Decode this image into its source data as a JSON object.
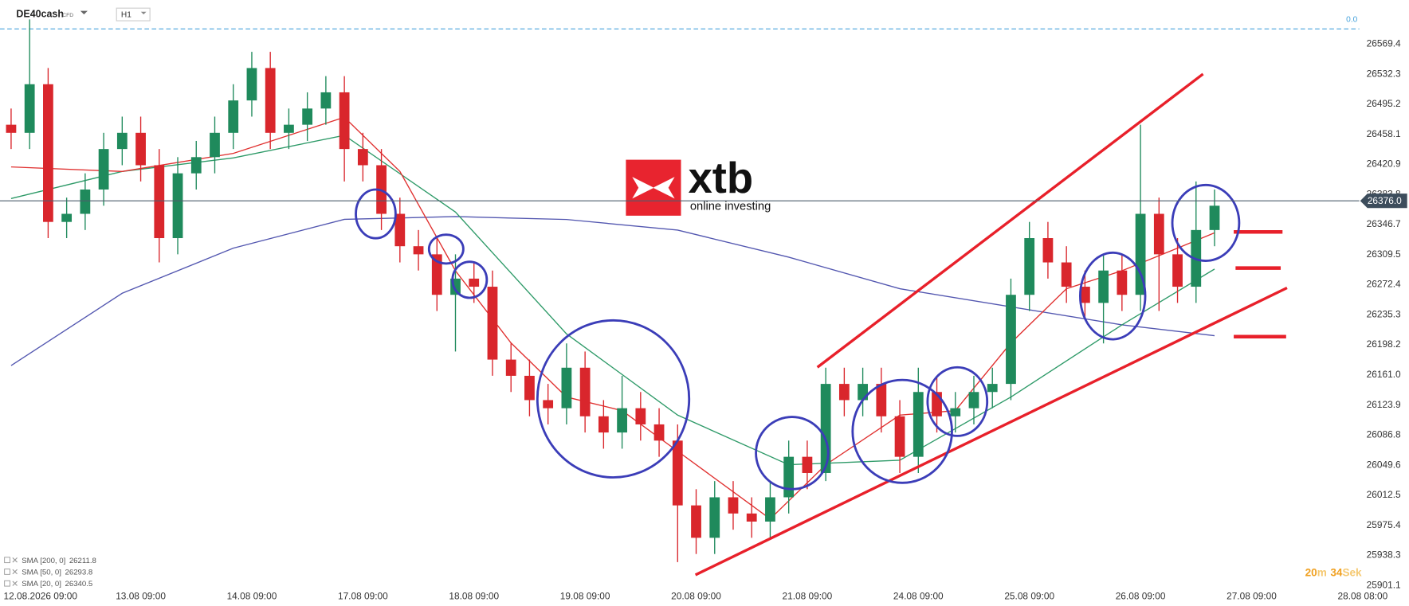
{
  "chart_data": {
    "type": "candlestick",
    "symbol": "DE40cash",
    "symbol_tag": "CFD",
    "timeframe": "H1",
    "watermark": {
      "brand": "xtb",
      "tagline": "online investing"
    },
    "zero_label": "0.0",
    "countdown": {
      "minutes": "20",
      "minutes_unit": "m",
      "seconds": "34",
      "seconds_unit": "Sek"
    },
    "up_color": "#1f8a5c",
    "down_color": "#d9262c",
    "x": [
      -1,
      0,
      1,
      2,
      3,
      4,
      5,
      6,
      7,
      8,
      9,
      10,
      11,
      12,
      13,
      14,
      15,
      16,
      17,
      18,
      19,
      20,
      21,
      22,
      23,
      24,
      25,
      26,
      27,
      28,
      29,
      30,
      31,
      32,
      33,
      34,
      35,
      36,
      37,
      38,
      39,
      40,
      41,
      42,
      43,
      44,
      45,
      46,
      47,
      48,
      49,
      50,
      51,
      52,
      53,
      54,
      55,
      56,
      57,
      58,
      59,
      60,
      61,
      62,
      63,
      64
    ],
    "open": [
      26470,
      26460,
      26520,
      26350,
      26360,
      26390,
      26440,
      26460,
      26420,
      26330,
      26410,
      26430,
      26460,
      26500,
      26540,
      26460,
      26470,
      26490,
      26510,
      26440,
      26420,
      26360,
      26320,
      26310,
      26260,
      26280,
      26270,
      26180,
      26160,
      26130,
      26120,
      26170,
      26110,
      26090,
      26120,
      26100,
      26080,
      26000,
      25960,
      26010,
      25990,
      25980,
      26010,
      26060,
      26040,
      26150,
      26130,
      26150,
      26110,
      26060,
      26140,
      26110,
      26120,
      26140,
      26150,
      26260,
      26330,
      26300,
      26270,
      26250,
      26290,
      26260,
      26360,
      26310,
      26270,
      26340
    ],
    "high": [
      26490,
      26600,
      26540,
      26380,
      26410,
      26460,
      26480,
      26480,
      26440,
      26430,
      26450,
      26480,
      26520,
      26560,
      26560,
      26490,
      26510,
      26530,
      26530,
      26460,
      26440,
      26380,
      26340,
      26330,
      26310,
      26300,
      26290,
      26200,
      26180,
      26150,
      26200,
      26190,
      26130,
      26160,
      26140,
      26120,
      26100,
      26020,
      26030,
      26030,
      26010,
      26030,
      26080,
      26080,
      26170,
      26170,
      26170,
      26170,
      26130,
      26170,
      26160,
      26140,
      26160,
      26170,
      26280,
      26350,
      26350,
      26320,
      26290,
      26310,
      26310,
      26470,
      26380,
      26330,
      26400,
      26390
    ],
    "low": [
      26440,
      26440,
      26330,
      26330,
      26340,
      26370,
      26420,
      26400,
      26300,
      26310,
      26390,
      26410,
      26440,
      26480,
      26440,
      26440,
      26450,
      26470,
      26400,
      26400,
      26340,
      26300,
      26290,
      26240,
      26190,
      26250,
      26160,
      26140,
      26110,
      26100,
      26100,
      26090,
      26070,
      26070,
      26080,
      26060,
      25930,
      25940,
      25940,
      25970,
      25960,
      25960,
      25990,
      26020,
      26030,
      26110,
      26110,
      26090,
      26040,
      26040,
      26090,
      26090,
      26100,
      26120,
      26130,
      26240,
      26280,
      26250,
      26230,
      26200,
      26240,
      26240,
      26240,
      26250,
      26250,
      26320
    ],
    "close": [
      26460,
      26520,
      26350,
      26360,
      26390,
      26440,
      26460,
      26420,
      26330,
      26410,
      26430,
      26460,
      26500,
      26540,
      26460,
      26470,
      26490,
      26510,
      26440,
      26420,
      26360,
      26320,
      26310,
      26260,
      26280,
      26270,
      26180,
      26160,
      26130,
      26120,
      26170,
      26110,
      26090,
      26120,
      26100,
      26080,
      26000,
      25960,
      26010,
      25990,
      25980,
      26010,
      26060,
      26040,
      26150,
      26130,
      26150,
      26110,
      26060,
      26140,
      26110,
      26120,
      26140,
      26150,
      26260,
      26330,
      26300,
      26270,
      26250,
      26290,
      26260,
      26360,
      26310,
      26270,
      26340,
      26370
    ],
    "series": [
      {
        "name": "SMA [200, 0]",
        "last": 26211.8,
        "color": "#5357b0",
        "x": [
          -1,
          5,
          11,
          17,
          23,
          29,
          35,
          41,
          47,
          53,
          59,
          64
        ],
        "values": [
          26172.7,
          26261.9,
          26317.6,
          26353.2,
          26356.6,
          26353.0,
          26339.9,
          26306.5,
          26267.5,
          26245.2,
          26222.9,
          26209.5
        ]
      },
      {
        "name": "SMA [50, 0]",
        "last": 26293.8,
        "color": "#2e9a68",
        "x": [
          -1,
          5,
          11,
          17,
          23,
          29,
          35,
          41,
          47,
          53,
          59,
          64
        ],
        "values": [
          26378.9,
          26412.3,
          26429.0,
          26456.9,
          26362.2,
          26211.7,
          26111.5,
          26050.2,
          26055.8,
          26133.8,
          26222.9,
          26291.8
        ]
      },
      {
        "name": "SMA [20, 0]",
        "last": 26340.5,
        "color": "#e0302f",
        "x": [
          -1,
          5,
          11,
          17,
          20,
          23,
          26,
          29,
          32,
          35,
          38,
          40,
          43,
          47,
          50,
          53,
          56,
          59,
          62,
          64
        ],
        "values": [
          26417.9,
          26412.3,
          26434.6,
          26479.2,
          26412.3,
          26289.7,
          26200.6,
          26133.8,
          26117.0,
          26066.9,
          26016.8,
          25983.3,
          26050.2,
          26111.5,
          26117.0,
          26200.6,
          26267.5,
          26289.7,
          26317.6,
          26336.5
        ]
      }
    ],
    "current_price": {
      "value": 26376,
      "label": "26376.0"
    },
    "xlim": [
      -1.6,
      72.5
    ],
    "xticks": [
      {
        "value": 0,
        "label": "12.08.2026 09:00"
      },
      {
        "value": 6,
        "label": "13.08 09:00"
      },
      {
        "value": 12,
        "label": "14.08 09:00"
      },
      {
        "value": 18,
        "label": "17.08 09:00"
      },
      {
        "value": 24,
        "label": "18.08 09:00"
      },
      {
        "value": 30,
        "label": "19.08 09:00"
      },
      {
        "value": 36,
        "label": "20.08 09:00"
      },
      {
        "value": 42,
        "label": "21.08 09:00"
      },
      {
        "value": 48,
        "label": "24.08 09:00"
      },
      {
        "value": 54,
        "label": "25.08 09:00"
      },
      {
        "value": 60,
        "label": "26.08 09:00"
      },
      {
        "value": 66,
        "label": "27.08 09:00"
      },
      {
        "value": 72,
        "label": "28.08 08:00"
      }
    ],
    "ylim": [
      25897.5,
      26624.0
    ],
    "yticks": [
      26569.4,
      26532.3,
      26495.2,
      26458.1,
      26420.9,
      26383.8,
      26346.7,
      26309.5,
      26272.4,
      26235.3,
      26198.2,
      {
        "value": 26161,
        "label": "26161.0"
      },
      26123.9,
      26086.8,
      26049.6,
      26012.5,
      25975.4,
      25938.3,
      25901.1
    ]
  }
}
